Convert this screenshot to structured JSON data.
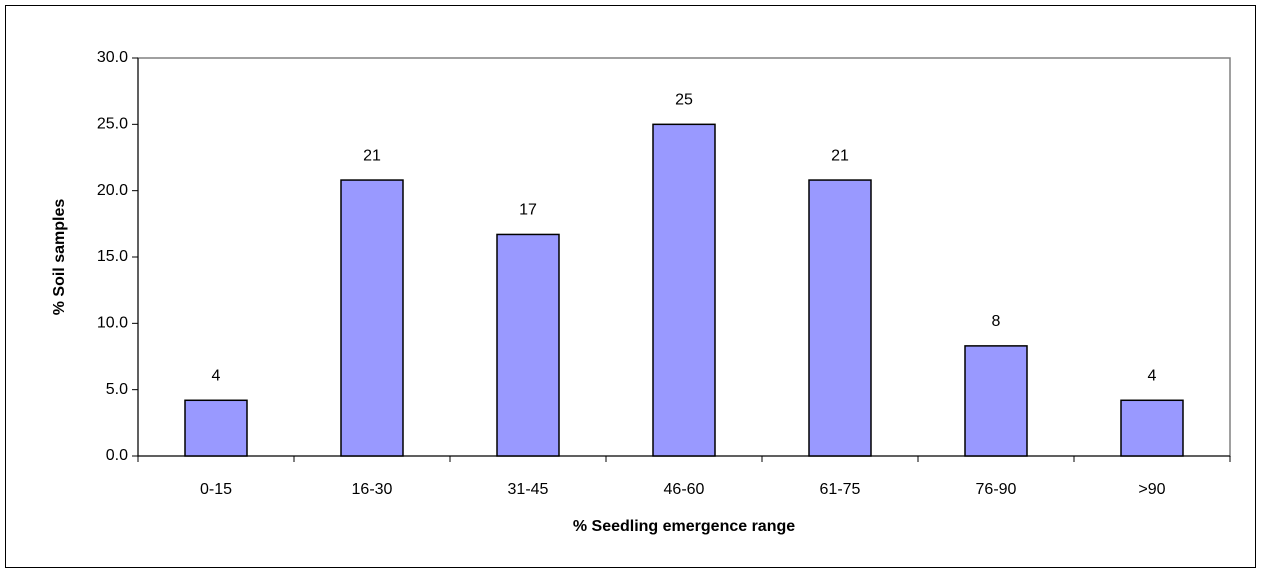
{
  "chart_data": {
    "type": "bar",
    "x_label": "% Seedling emergence range",
    "y_label": "% Soil samples",
    "categories": [
      "0-15",
      "16-30",
      "31-45",
      "46-60",
      "61-75",
      "76-90",
      ">90"
    ],
    "values": [
      4.2,
      20.8,
      16.7,
      25.0,
      20.8,
      8.3,
      4.2
    ],
    "value_labels": [
      "4",
      "21",
      "17",
      "25",
      "21",
      "8",
      "4"
    ],
    "color": "#9999ff",
    "ylim": [
      0,
      30
    ],
    "yticks": [
      {
        "value": 0,
        "label": "0.0"
      },
      {
        "value": 5,
        "label": "5.0"
      },
      {
        "value": 10,
        "label": "10.0"
      },
      {
        "value": 15,
        "label": "15.0"
      },
      {
        "value": 20,
        "label": "20.0"
      },
      {
        "value": 25,
        "label": "25.0"
      },
      {
        "value": 30,
        "label": "30.0"
      }
    ],
    "grid": false
  }
}
